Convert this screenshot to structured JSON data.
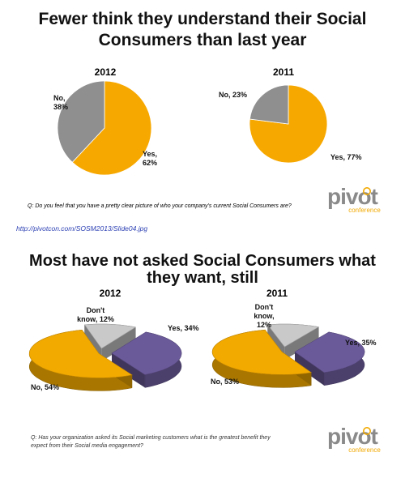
{
  "colors": {
    "title": "#111111",
    "year": "#8b1a1a",
    "yes": "#f7a800",
    "no": "#8f8f8f",
    "yes_3d": "#6b5a9a",
    "dont_know_3d": "#c9c9c9",
    "no_3d": "#f2a900",
    "question": "#333333",
    "brand": "#8a8a8a",
    "brand_accent": "#f2a900",
    "url": "#2b3fb3"
  },
  "source_url": "http://pivotcon.com/SOSM2013/Slide04.jpg",
  "brand": {
    "name": "pivot",
    "sub": "conference"
  },
  "chart_data": [
    {
      "type": "pie",
      "title": "Fewer think they understand their Social Consumers than last year",
      "question": "Q: Do you feel that you have a pretty clear picture of who your company's current Social Consumers are?",
      "charts": [
        {
          "year": "2012",
          "slices": [
            {
              "label": "Yes",
              "value": 62,
              "text": "Yes, 62%",
              "color": "#f7a800"
            },
            {
              "label": "No",
              "value": 38,
              "text": "No, 38%",
              "color": "#8f8f8f"
            }
          ]
        },
        {
          "year": "2011",
          "slices": [
            {
              "label": "Yes",
              "value": 77,
              "text": "Yes, 77%",
              "color": "#f7a800"
            },
            {
              "label": "No",
              "value": 23,
              "text": "No, 23%",
              "color": "#8f8f8f"
            }
          ]
        }
      ]
    },
    {
      "type": "pie",
      "title": "Most have not asked Social Consumers what they want, still",
      "question": "Q: Has your organization asked its Social marketing customers what is the greatest benefit they expect from their Social media engagement?",
      "charts": [
        {
          "year": "2012",
          "slices": [
            {
              "label": "Yes",
              "value": 34,
              "text": "Yes, 34%",
              "color": "#6b5a9a"
            },
            {
              "label": "No",
              "value": 54,
              "text": "No, 54%",
              "color": "#f2a900"
            },
            {
              "label": "Don't know",
              "value": 12,
              "text": "Don't know, 12%",
              "color": "#c9c9c9"
            }
          ]
        },
        {
          "year": "2011",
          "slices": [
            {
              "label": "Yes",
              "value": 35,
              "text": "Yes, 35%",
              "color": "#6b5a9a"
            },
            {
              "label": "No",
              "value": 53,
              "text": "No, 53%",
              "color": "#f2a900"
            },
            {
              "label": "Don't know",
              "value": 12,
              "text": "Don't know, 12%",
              "color": "#c9c9c9"
            }
          ]
        }
      ]
    }
  ]
}
